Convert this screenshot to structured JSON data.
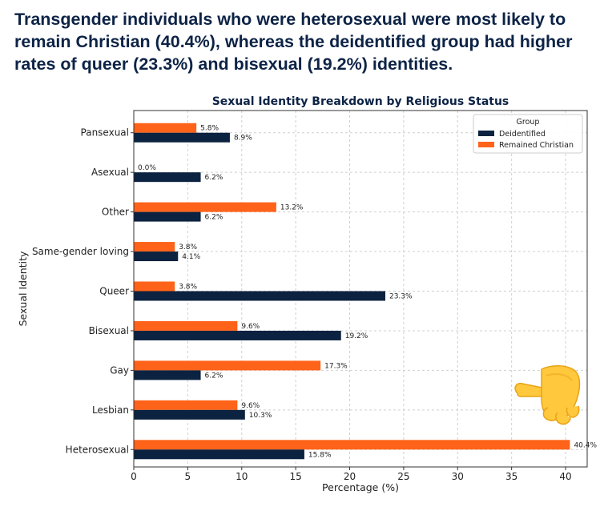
{
  "headline": "Transgender individuals who were heterosexual were most likely to remain Christian (40.4%), whereas the deidentified group had higher rates of queer (23.3%) and bisexual (19.2%) identities.",
  "icons": {
    "pointer": "backhand-index-pointing-down-right-icon"
  },
  "colors": {
    "headline": "#0d2346",
    "deidentified": "#0b2240",
    "remained_christian": "#ff6319",
    "grid": "#cfcfcf"
  },
  "chart_data": {
    "type": "bar",
    "orientation": "horizontal",
    "title": "Sexual Identity Breakdown by Religious Status",
    "xlabel": "Percentage (%)",
    "ylabel": "Sexual Identity",
    "xlim": [
      0,
      42
    ],
    "xticks": [
      0,
      5,
      10,
      15,
      20,
      25,
      30,
      35,
      40
    ],
    "grid": true,
    "legend_title": "Group",
    "legend_position": "top-right",
    "categories": [
      "Pansexual",
      "Asexual",
      "Other",
      "Same-gender loving",
      "Queer",
      "Bisexual",
      "Gay",
      "Lesbian",
      "Heterosexual"
    ],
    "series": [
      {
        "name": "Deidentified",
        "color": "#0b2240",
        "values": [
          8.9,
          6.2,
          6.2,
          4.1,
          23.3,
          19.2,
          6.2,
          10.3,
          15.8
        ],
        "labels": [
          "8.9%",
          "6.2%",
          "6.2%",
          "4.1%",
          "23.3%",
          "19.2%",
          "6.2%",
          "10.3%",
          "15.8%"
        ]
      },
      {
        "name": "Remained Christian",
        "color": "#ff6319",
        "values": [
          5.8,
          0.0,
          13.2,
          3.8,
          3.8,
          9.6,
          17.3,
          9.6,
          40.4
        ],
        "labels": [
          "5.8%",
          "0.0%",
          "13.2%",
          "3.8%",
          "3.8%",
          "9.6%",
          "17.3%",
          "9.6%",
          "40.4%"
        ]
      }
    ]
  }
}
